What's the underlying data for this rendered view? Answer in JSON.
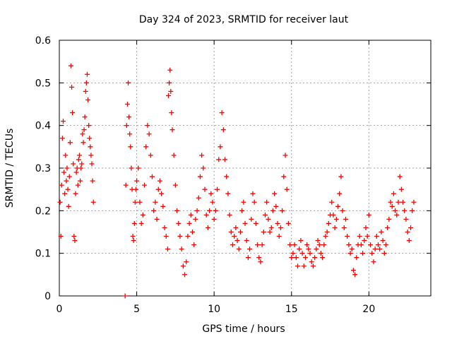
{
  "chart_data": {
    "type": "scatter",
    "title": "Day 324 of 2023, SRMTID for receiver laut",
    "xlabel": "GPS time / hours",
    "ylabel": "SRMTID / TECUs",
    "xlim": [
      0,
      24
    ],
    "ylim": [
      0,
      0.6
    ],
    "xticks": [
      0,
      5,
      10,
      15,
      20
    ],
    "xtick_labels": [
      "0",
      "5",
      "10",
      "15",
      "20"
    ],
    "yticks": [
      0,
      0.1,
      0.2,
      0.3,
      0.4,
      0.5,
      0.6
    ],
    "ytick_labels": [
      "0",
      "0.1",
      "0.2",
      "0.3",
      "0.4",
      "0.5",
      "0.6"
    ],
    "grid": true,
    "marker": "plus",
    "color": "#ff0000",
    "series": [
      {
        "name": "SRMTID",
        "points": [
          [
            0.05,
            0.22
          ],
          [
            0.1,
            0.14
          ],
          [
            0.15,
            0.26
          ],
          [
            0.2,
            0.37
          ],
          [
            0.25,
            0.41
          ],
          [
            0.3,
            0.29
          ],
          [
            0.35,
            0.24
          ],
          [
            0.4,
            0.33
          ],
          [
            0.45,
            0.27
          ],
          [
            0.5,
            0.3
          ],
          [
            0.55,
            0.25
          ],
          [
            0.6,
            0.21
          ],
          [
            0.65,
            0.28
          ],
          [
            0.7,
            0.36
          ],
          [
            0.75,
            0.54
          ],
          [
            0.8,
            0.49
          ],
          [
            0.85,
            0.43
          ],
          [
            0.9,
            0.31
          ],
          [
            0.95,
            0.14
          ],
          [
            1.0,
            0.13
          ],
          [
            1.05,
            0.24
          ],
          [
            1.1,
            0.29
          ],
          [
            1.15,
            0.3
          ],
          [
            1.2,
            0.26
          ],
          [
            1.25,
            0.32
          ],
          [
            1.3,
            0.33
          ],
          [
            1.35,
            0.27
          ],
          [
            1.4,
            0.3
          ],
          [
            1.45,
            0.31
          ],
          [
            1.5,
            0.38
          ],
          [
            1.55,
            0.36
          ],
          [
            1.6,
            0.39
          ],
          [
            1.65,
            0.42
          ],
          [
            1.7,
            0.48
          ],
          [
            1.75,
            0.5
          ],
          [
            1.8,
            0.52
          ],
          [
            1.85,
            0.46
          ],
          [
            1.9,
            0.4
          ],
          [
            1.95,
            0.37
          ],
          [
            2.0,
            0.35
          ],
          [
            2.05,
            0.33
          ],
          [
            2.1,
            0.31
          ],
          [
            2.15,
            0.27
          ],
          [
            2.2,
            0.22
          ],
          [
            4.25,
            0.0
          ],
          [
            4.3,
            0.26
          ],
          [
            4.35,
            0.4
          ],
          [
            4.4,
            0.45
          ],
          [
            4.45,
            0.5
          ],
          [
            4.5,
            0.42
          ],
          [
            4.55,
            0.38
          ],
          [
            4.6,
            0.35
          ],
          [
            4.65,
            0.3
          ],
          [
            4.7,
            0.25
          ],
          [
            4.75,
            0.14
          ],
          [
            4.8,
            0.13
          ],
          [
            4.85,
            0.17
          ],
          [
            4.9,
            0.22
          ],
          [
            4.95,
            0.25
          ],
          [
            5.0,
            0.27
          ],
          [
            5.1,
            0.3
          ],
          [
            5.2,
            0.22
          ],
          [
            5.3,
            0.17
          ],
          [
            5.4,
            0.19
          ],
          [
            5.5,
            0.26
          ],
          [
            5.6,
            0.35
          ],
          [
            5.7,
            0.4
          ],
          [
            5.8,
            0.38
          ],
          [
            5.9,
            0.33
          ],
          [
            6.0,
            0.28
          ],
          [
            6.1,
            0.2
          ],
          [
            6.2,
            0.22
          ],
          [
            6.3,
            0.18
          ],
          [
            6.4,
            0.25
          ],
          [
            6.5,
            0.27
          ],
          [
            6.6,
            0.24
          ],
          [
            6.7,
            0.21
          ],
          [
            6.8,
            0.16
          ],
          [
            6.9,
            0.14
          ],
          [
            7.0,
            0.11
          ],
          [
            7.05,
            0.47
          ],
          [
            7.1,
            0.5
          ],
          [
            7.15,
            0.53
          ],
          [
            7.2,
            0.48
          ],
          [
            7.25,
            0.43
          ],
          [
            7.3,
            0.39
          ],
          [
            7.4,
            0.33
          ],
          [
            7.5,
            0.26
          ],
          [
            7.6,
            0.2
          ],
          [
            7.7,
            0.17
          ],
          [
            7.8,
            0.14
          ],
          [
            7.9,
            0.11
          ],
          [
            8.0,
            0.07
          ],
          [
            8.1,
            0.05
          ],
          [
            8.2,
            0.08
          ],
          [
            8.3,
            0.14
          ],
          [
            8.4,
            0.17
          ],
          [
            8.5,
            0.19
          ],
          [
            8.6,
            0.15
          ],
          [
            8.7,
            0.12
          ],
          [
            8.8,
            0.18
          ],
          [
            8.9,
            0.2
          ],
          [
            9.0,
            0.23
          ],
          [
            9.1,
            0.28
          ],
          [
            9.2,
            0.33
          ],
          [
            9.3,
            0.3
          ],
          [
            9.4,
            0.25
          ],
          [
            9.5,
            0.19
          ],
          [
            9.6,
            0.16
          ],
          [
            9.7,
            0.2
          ],
          [
            9.8,
            0.24
          ],
          [
            9.9,
            0.22
          ],
          [
            10.0,
            0.18
          ],
          [
            10.1,
            0.2
          ],
          [
            10.2,
            0.25
          ],
          [
            10.3,
            0.32
          ],
          [
            10.4,
            0.35
          ],
          [
            10.5,
            0.43
          ],
          [
            10.6,
            0.39
          ],
          [
            10.7,
            0.32
          ],
          [
            10.8,
            0.28
          ],
          [
            10.9,
            0.24
          ],
          [
            11.0,
            0.19
          ],
          [
            11.1,
            0.15
          ],
          [
            11.2,
            0.12
          ],
          [
            11.3,
            0.14
          ],
          [
            11.4,
            0.16
          ],
          [
            11.5,
            0.13
          ],
          [
            11.6,
            0.11
          ],
          [
            11.7,
            0.15
          ],
          [
            11.8,
            0.2
          ],
          [
            11.9,
            0.22
          ],
          [
            12.0,
            0.17
          ],
          [
            12.1,
            0.13
          ],
          [
            12.2,
            0.09
          ],
          [
            12.3,
            0.11
          ],
          [
            12.4,
            0.18
          ],
          [
            12.5,
            0.24
          ],
          [
            12.6,
            0.22
          ],
          [
            12.7,
            0.17
          ],
          [
            12.8,
            0.12
          ],
          [
            12.9,
            0.09
          ],
          [
            13.0,
            0.08
          ],
          [
            13.1,
            0.12
          ],
          [
            13.2,
            0.15
          ],
          [
            13.3,
            0.19
          ],
          [
            13.4,
            0.22
          ],
          [
            13.5,
            0.18
          ],
          [
            13.6,
            0.15
          ],
          [
            13.7,
            0.16
          ],
          [
            13.8,
            0.2
          ],
          [
            13.9,
            0.24
          ],
          [
            14.0,
            0.21
          ],
          [
            14.1,
            0.17
          ],
          [
            14.2,
            0.14
          ],
          [
            14.3,
            0.16
          ],
          [
            14.4,
            0.2
          ],
          [
            14.5,
            0.28
          ],
          [
            14.6,
            0.33
          ],
          [
            14.7,
            0.25
          ],
          [
            14.8,
            0.17
          ],
          [
            14.9,
            0.12
          ],
          [
            15.0,
            0.09
          ],
          [
            15.1,
            0.1
          ],
          [
            15.2,
            0.12
          ],
          [
            15.3,
            0.09
          ],
          [
            15.4,
            0.07
          ],
          [
            15.5,
            0.11
          ],
          [
            15.6,
            0.13
          ],
          [
            15.7,
            0.1
          ],
          [
            15.8,
            0.07
          ],
          [
            15.9,
            0.09
          ],
          [
            16.0,
            0.12
          ],
          [
            16.1,
            0.11
          ],
          [
            16.2,
            0.1
          ],
          [
            16.3,
            0.08
          ],
          [
            16.4,
            0.07
          ],
          [
            16.5,
            0.09
          ],
          [
            16.6,
            0.11
          ],
          [
            16.7,
            0.13
          ],
          [
            16.8,
            0.12
          ],
          [
            16.9,
            0.1
          ],
          [
            17.0,
            0.09
          ],
          [
            17.1,
            0.12
          ],
          [
            17.2,
            0.14
          ],
          [
            17.3,
            0.15
          ],
          [
            17.4,
            0.17
          ],
          [
            17.5,
            0.19
          ],
          [
            17.6,
            0.22
          ],
          [
            17.7,
            0.19
          ],
          [
            17.8,
            0.16
          ],
          [
            17.9,
            0.18
          ],
          [
            18.0,
            0.21
          ],
          [
            18.1,
            0.24
          ],
          [
            18.2,
            0.28
          ],
          [
            18.3,
            0.2
          ],
          [
            18.4,
            0.16
          ],
          [
            18.5,
            0.18
          ],
          [
            18.6,
            0.14
          ],
          [
            18.7,
            0.12
          ],
          [
            18.8,
            0.1
          ],
          [
            18.9,
            0.11
          ],
          [
            19.0,
            0.06
          ],
          [
            19.1,
            0.05
          ],
          [
            19.2,
            0.09
          ],
          [
            19.3,
            0.12
          ],
          [
            19.4,
            0.14
          ],
          [
            19.5,
            0.12
          ],
          [
            19.6,
            0.1
          ],
          [
            19.7,
            0.13
          ],
          [
            19.8,
            0.16
          ],
          [
            19.9,
            0.14
          ],
          [
            20.0,
            0.19
          ],
          [
            20.1,
            0.12
          ],
          [
            20.2,
            0.1
          ],
          [
            20.3,
            0.08
          ],
          [
            20.4,
            0.11
          ],
          [
            20.5,
            0.14
          ],
          [
            20.6,
            0.12
          ],
          [
            20.7,
            0.11
          ],
          [
            20.8,
            0.15
          ],
          [
            20.9,
            0.13
          ],
          [
            21.0,
            0.1
          ],
          [
            21.1,
            0.12
          ],
          [
            21.2,
            0.16
          ],
          [
            21.3,
            0.18
          ],
          [
            21.4,
            0.22
          ],
          [
            21.5,
            0.21
          ],
          [
            21.6,
            0.24
          ],
          [
            21.7,
            0.2
          ],
          [
            21.8,
            0.19
          ],
          [
            21.9,
            0.22
          ],
          [
            22.0,
            0.28
          ],
          [
            22.1,
            0.25
          ],
          [
            22.2,
            0.22
          ],
          [
            22.3,
            0.2
          ],
          [
            22.4,
            0.18
          ],
          [
            22.5,
            0.15
          ],
          [
            22.6,
            0.13
          ],
          [
            22.7,
            0.16
          ],
          [
            22.8,
            0.2
          ],
          [
            22.9,
            0.22
          ]
        ]
      }
    ]
  }
}
